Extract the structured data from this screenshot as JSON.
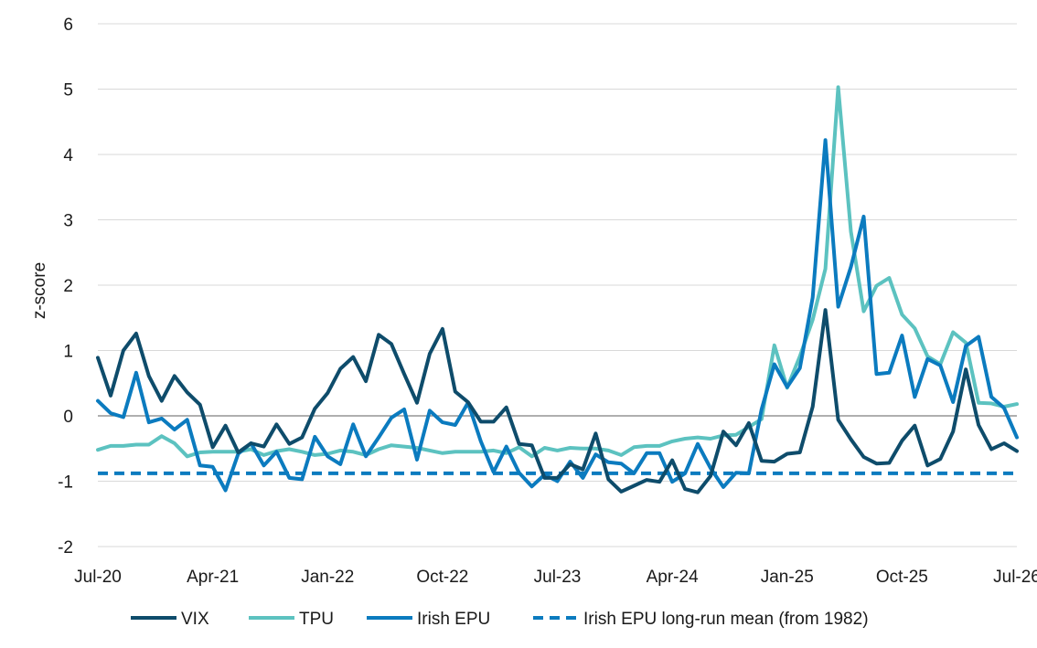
{
  "chart_data": {
    "type": "line",
    "ylabel": "z-score",
    "xlabel": "",
    "ylim": [
      -2,
      6
    ],
    "yticks": [
      -2,
      -1,
      0,
      1,
      2,
      3,
      4,
      5,
      6
    ],
    "x_tick_labels": [
      "Jul-20",
      "Apr-21",
      "Jan-22",
      "Oct-22",
      "Jul-23",
      "Apr-24",
      "Jan-25",
      "Oct-25",
      "Jul-26"
    ],
    "x_tick_months": [
      "2020-07",
      "2021-04",
      "2022-01",
      "2022-10",
      "2023-07",
      "2024-04",
      "2025-01",
      "2025-10",
      "2026-07"
    ],
    "x_start": "2020-07",
    "x_end": "2026-07",
    "grid": "horizontal",
    "legend_position": "bottom",
    "series": [
      {
        "name": "VIX",
        "color": "#0e4c6b",
        "dash": "solid",
        "values": [
          0.89,
          0.31,
          1.0,
          1.26,
          0.61,
          0.23,
          0.61,
          0.36,
          0.17,
          -0.48,
          -0.15,
          -0.56,
          -0.42,
          -0.47,
          -0.13,
          -0.43,
          -0.33,
          0.11,
          0.35,
          0.72,
          0.9,
          0.53,
          1.24,
          1.1,
          0.64,
          0.2,
          0.95,
          1.33,
          0.37,
          0.21,
          -0.09,
          -0.09,
          0.13,
          -0.43,
          -0.45,
          -0.95,
          -0.95,
          -0.74,
          -0.82,
          -0.27,
          -0.97,
          -1.16,
          -1.07,
          -0.98,
          -1.01,
          -0.68,
          -1.12,
          -1.17,
          -0.92,
          -0.24,
          -0.45,
          -0.11,
          -0.69,
          -0.7,
          -0.58,
          -0.56,
          0.14,
          1.62,
          -0.06,
          -0.36,
          -0.63,
          -0.73,
          -0.72,
          -0.38,
          -0.15,
          -0.76,
          -0.66,
          -0.24,
          0.71,
          -0.14,
          -0.51,
          -0.42,
          -0.54
        ]
      },
      {
        "name": "TPU",
        "color": "#5cc2c0",
        "dash": "solid",
        "values": [
          -0.52,
          -0.46,
          -0.46,
          -0.44,
          -0.44,
          -0.31,
          -0.42,
          -0.62,
          -0.56,
          -0.55,
          -0.55,
          -0.55,
          -0.51,
          -0.6,
          -0.54,
          -0.51,
          -0.55,
          -0.6,
          -0.58,
          -0.53,
          -0.55,
          -0.6,
          -0.51,
          -0.45,
          -0.47,
          -0.49,
          -0.53,
          -0.57,
          -0.55,
          -0.55,
          -0.55,
          -0.53,
          -0.57,
          -0.48,
          -0.62,
          -0.49,
          -0.53,
          -0.49,
          -0.5,
          -0.5,
          -0.53,
          -0.6,
          -0.48,
          -0.46,
          -0.46,
          -0.39,
          -0.35,
          -0.33,
          -0.35,
          -0.3,
          -0.29,
          -0.17,
          -0.05,
          1.08,
          0.43,
          0.91,
          1.47,
          2.25,
          5.03,
          2.82,
          1.6,
          1.99,
          2.11,
          1.55,
          1.34,
          0.91,
          0.79,
          1.28,
          1.12,
          0.2,
          0.19,
          0.14,
          0.18
        ]
      },
      {
        "name": "Irish EPU",
        "color": "#0b7bbf",
        "dash": "solid",
        "values": [
          0.23,
          0.04,
          -0.02,
          0.66,
          -0.1,
          -0.04,
          -0.21,
          -0.06,
          -0.76,
          -0.78,
          -1.14,
          -0.58,
          -0.42,
          -0.76,
          -0.55,
          -0.95,
          -0.97,
          -0.32,
          -0.62,
          -0.74,
          -0.13,
          -0.62,
          -0.33,
          -0.03,
          0.1,
          -0.67,
          0.08,
          -0.1,
          -0.14,
          0.2,
          -0.39,
          -0.86,
          -0.47,
          -0.87,
          -1.08,
          -0.9,
          -1.0,
          -0.7,
          -0.95,
          -0.59,
          -0.71,
          -0.73,
          -0.88,
          -0.57,
          -0.57,
          -1.01,
          -0.88,
          -0.43,
          -0.8,
          -1.09,
          -0.87,
          -0.88,
          0.1,
          0.79,
          0.44,
          0.73,
          1.81,
          4.22,
          1.67,
          2.28,
          3.05,
          0.64,
          0.66,
          1.23,
          0.29,
          0.87,
          0.77,
          0.21,
          1.07,
          1.21,
          0.29,
          0.12,
          -0.33
        ]
      },
      {
        "name": "Irish EPU long-run mean (from 1982)",
        "color": "#0b7bbf",
        "dash": "dashed",
        "constant": -0.88
      }
    ]
  }
}
